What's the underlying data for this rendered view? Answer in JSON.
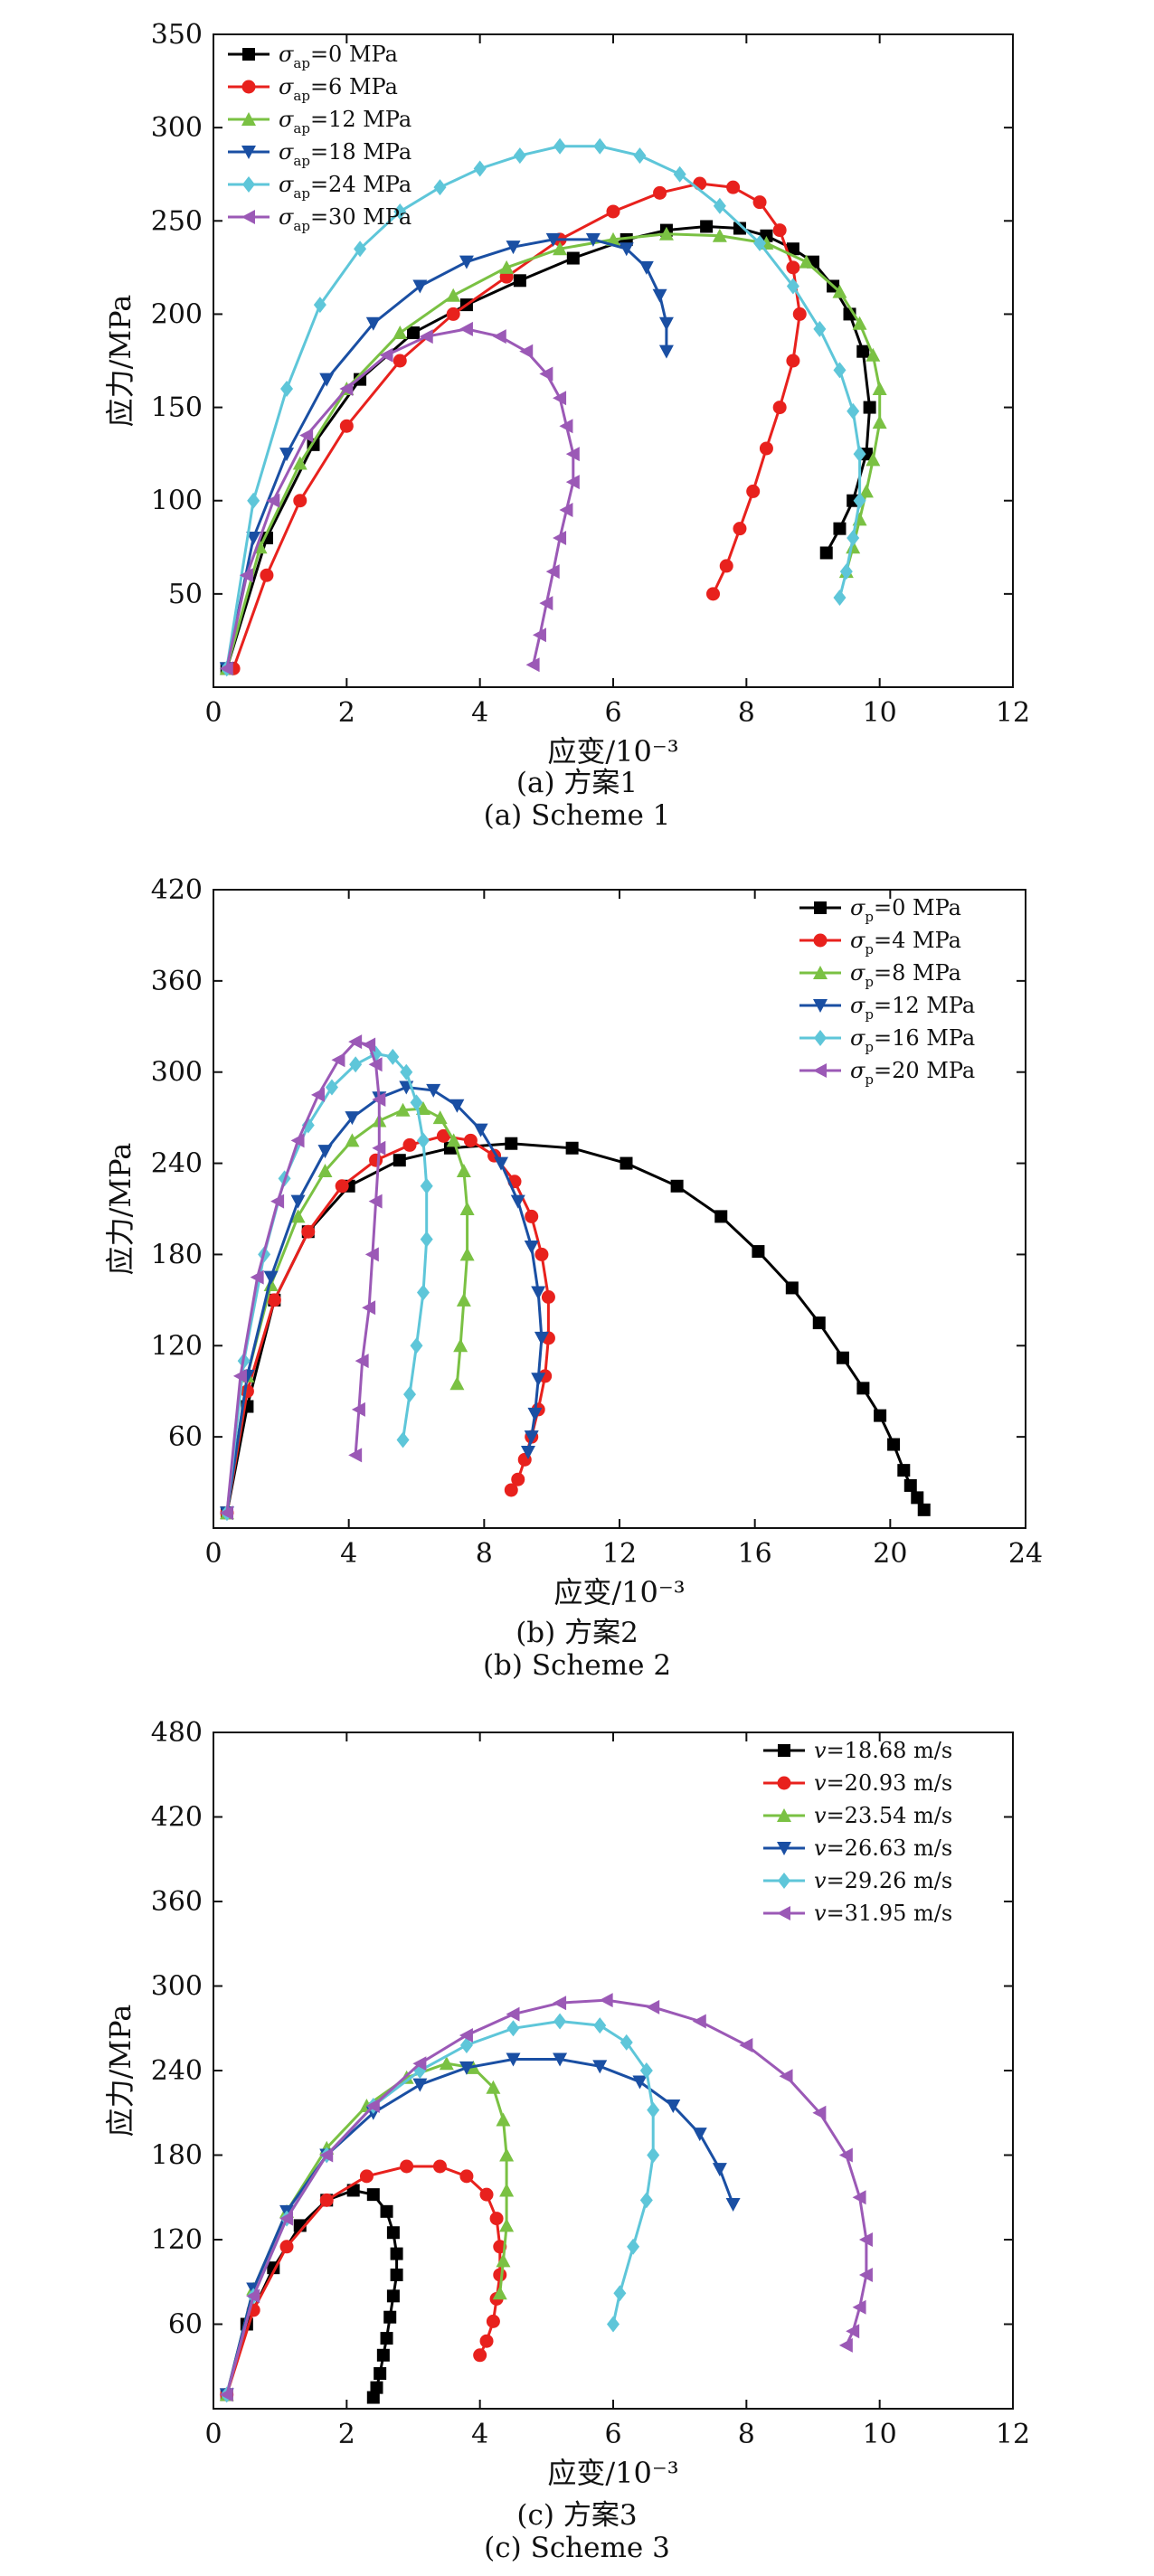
{
  "chart_data": [
    {
      "type": "line",
      "caption_cn": "(a) 方案1",
      "caption_en": "(a) Scheme 1",
      "xlabel": "应变/10⁻³",
      "ylabel": "应力/MPa",
      "xlim": [
        0,
        12
      ],
      "ylim": [
        0,
        350
      ],
      "xticks": [
        0,
        2,
        4,
        6,
        8,
        10,
        12
      ],
      "yticks": [
        50,
        100,
        150,
        200,
        250,
        300,
        350
      ],
      "legend_position": "top-left",
      "series": [
        {
          "name": "σap=0 MPa",
          "sym": "σ",
          "sub": "ap",
          "rest": "=0 MPa",
          "color": "#000000",
          "marker": "square",
          "x": [
            0.2,
            0.8,
            1.5,
            2.2,
            3,
            3.8,
            4.6,
            5.4,
            6.2,
            6.8,
            7.4,
            7.9,
            8.3,
            8.7,
            9.0,
            9.3,
            9.55,
            9.75,
            9.85,
            9.8,
            9.6,
            9.4,
            9.2
          ],
          "y": [
            10,
            80,
            130,
            165,
            190,
            205,
            218,
            230,
            240,
            245,
            247,
            246,
            242,
            235,
            228,
            215,
            200,
            180,
            150,
            125,
            100,
            85,
            72
          ]
        },
        {
          "name": "σap=6 MPa",
          "sym": "σ",
          "sub": "ap",
          "rest": "=6 MPa",
          "color": "#e8211d",
          "marker": "circle",
          "x": [
            0.3,
            0.8,
            1.3,
            2,
            2.8,
            3.6,
            4.4,
            5.2,
            6,
            6.7,
            7.3,
            7.8,
            8.2,
            8.5,
            8.7,
            8.8,
            8.7,
            8.5,
            8.3,
            8.1,
            7.9,
            7.7,
            7.5
          ],
          "y": [
            10,
            60,
            100,
            140,
            175,
            200,
            220,
            240,
            255,
            265,
            270,
            268,
            260,
            245,
            225,
            200,
            175,
            150,
            128,
            105,
            85,
            65,
            50
          ]
        },
        {
          "name": "σap=12 MPa",
          "sym": "σ",
          "sub": "ap",
          "rest": "=12 MPa",
          "color": "#7ac143",
          "marker": "triangle-up",
          "x": [
            0.2,
            0.7,
            1.3,
            2,
            2.8,
            3.6,
            4.4,
            5.2,
            6,
            6.8,
            7.6,
            8.3,
            8.9,
            9.4,
            9.7,
            9.9,
            10.0,
            10.0,
            9.9,
            9.8,
            9.7,
            9.6,
            9.5
          ],
          "y": [
            10,
            75,
            120,
            160,
            190,
            210,
            225,
            235,
            240,
            243,
            242,
            238,
            228,
            212,
            195,
            178,
            160,
            142,
            122,
            105,
            90,
            75,
            62
          ]
        },
        {
          "name": "σap=18 MPa",
          "sym": "σ",
          "sub": "ap",
          "rest": "=18 MPa",
          "color": "#1a4fa3",
          "marker": "triangle-down",
          "x": [
            0.2,
            0.6,
            1.1,
            1.7,
            2.4,
            3.1,
            3.8,
            4.5,
            5.1,
            5.7,
            6.2,
            6.5,
            6.7,
            6.8,
            6.8
          ],
          "y": [
            10,
            80,
            125,
            165,
            195,
            215,
            228,
            236,
            240,
            240,
            235,
            225,
            210,
            195,
            180
          ]
        },
        {
          "name": "σap=24 MPa",
          "sym": "σ",
          "sub": "ap",
          "rest": "=24 MPa",
          "color": "#5ec6d9",
          "marker": "diamond",
          "x": [
            0.2,
            0.6,
            1.1,
            1.6,
            2.2,
            2.8,
            3.4,
            4.0,
            4.6,
            5.2,
            5.8,
            6.4,
            7.0,
            7.6,
            8.2,
            8.7,
            9.1,
            9.4,
            9.6,
            9.7,
            9.7,
            9.6,
            9.5,
            9.4
          ],
          "y": [
            10,
            100,
            160,
            205,
            235,
            255,
            268,
            278,
            285,
            290,
            290,
            285,
            275,
            258,
            238,
            215,
            192,
            170,
            148,
            125,
            100,
            80,
            62,
            48
          ]
        },
        {
          "name": "σap=30 MPa",
          "sym": "σ",
          "sub": "ap",
          "rest": "=30 MPa",
          "color": "#9b59b6",
          "marker": "triangle-left",
          "x": [
            0.2,
            0.5,
            0.9,
            1.4,
            2.0,
            2.6,
            3.2,
            3.8,
            4.3,
            4.7,
            5.0,
            5.2,
            5.3,
            5.4,
            5.4,
            5.3,
            5.2,
            5.1,
            5.0,
            4.9,
            4.8
          ],
          "y": [
            10,
            60,
            100,
            135,
            160,
            178,
            188,
            192,
            188,
            180,
            168,
            155,
            140,
            125,
            110,
            95,
            80,
            62,
            45,
            28,
            12
          ]
        }
      ]
    },
    {
      "type": "line",
      "caption_cn": "(b) 方案2",
      "caption_en": "(b) Scheme 2",
      "xlabel": "应变/10⁻³",
      "ylabel": "应力/MPa",
      "xlim": [
        0,
        24
      ],
      "ylim": [
        0,
        420
      ],
      "xticks": [
        0,
        4,
        8,
        12,
        16,
        20,
        24
      ],
      "yticks": [
        60,
        120,
        180,
        240,
        300,
        360,
        420
      ],
      "legend_position": "top-right",
      "series": [
        {
          "name": "σp=0 MPa",
          "sym": "σ",
          "sub": "p",
          "rest": "=0 MPa",
          "color": "#000000",
          "marker": "square",
          "x": [
            0.4,
            1.0,
            1.8,
            2.8,
            4,
            5.5,
            7,
            8.8,
            10.6,
            12.2,
            13.7,
            15,
            16.1,
            17.1,
            17.9,
            18.6,
            19.2,
            19.7,
            20.1,
            20.4,
            20.6,
            20.8,
            21.0
          ],
          "y": [
            10,
            80,
            150,
            195,
            225,
            242,
            250,
            253,
            250,
            240,
            225,
            205,
            182,
            158,
            135,
            112,
            92,
            74,
            55,
            38,
            28,
            20,
            12
          ]
        },
        {
          "name": "σp=4 MPa",
          "sym": "σ",
          "sub": "p",
          "rest": "=4 MPa",
          "color": "#e8211d",
          "marker": "circle",
          "x": [
            0.4,
            1,
            1.8,
            2.8,
            3.8,
            4.8,
            5.8,
            6.8,
            7.6,
            8.3,
            8.9,
            9.4,
            9.7,
            9.9,
            9.9,
            9.8,
            9.6,
            9.4,
            9.2,
            9.0,
            8.8
          ],
          "y": [
            10,
            90,
            150,
            195,
            225,
            242,
            252,
            258,
            255,
            245,
            228,
            205,
            180,
            152,
            125,
            100,
            78,
            60,
            45,
            32,
            25
          ]
        },
        {
          "name": "σp=8 MPa",
          "sym": "σ",
          "sub": "p",
          "rest": "=8 MPa",
          "color": "#7ac143",
          "marker": "triangle-up",
          "x": [
            0.4,
            1,
            1.7,
            2.5,
            3.3,
            4.1,
            4.9,
            5.6,
            6.2,
            6.7,
            7.1,
            7.4,
            7.5,
            7.5,
            7.4,
            7.3,
            7.2
          ],
          "y": [
            10,
            100,
            160,
            205,
            235,
            255,
            268,
            275,
            276,
            270,
            255,
            235,
            210,
            180,
            150,
            120,
            95
          ]
        },
        {
          "name": "σp=12 MPa",
          "sym": "σ",
          "sub": "p",
          "rest": "=12 MPa",
          "color": "#1a4fa3",
          "marker": "triangle-down",
          "x": [
            0.4,
            1,
            1.7,
            2.5,
            3.3,
            4.1,
            4.9,
            5.7,
            6.5,
            7.2,
            7.9,
            8.5,
            9.0,
            9.4,
            9.6,
            9.7,
            9.6,
            9.5,
            9.4,
            9.3
          ],
          "y": [
            10,
            100,
            165,
            215,
            248,
            270,
            283,
            290,
            288,
            278,
            262,
            240,
            215,
            185,
            155,
            125,
            98,
            75,
            60,
            50
          ]
        },
        {
          "name": "σp=16 MPa",
          "sym": "σ",
          "sub": "p",
          "rest": "=16 MPa",
          "color": "#5ec6d9",
          "marker": "diamond",
          "x": [
            0.4,
            0.9,
            1.5,
            2.1,
            2.8,
            3.5,
            4.2,
            4.8,
            5.3,
            5.7,
            6.0,
            6.2,
            6.3,
            6.3,
            6.2,
            6.0,
            5.8,
            5.6
          ],
          "y": [
            10,
            110,
            180,
            230,
            265,
            290,
            305,
            312,
            310,
            300,
            280,
            255,
            225,
            190,
            155,
            120,
            88,
            58
          ]
        },
        {
          "name": "σp=20 MPa",
          "sym": "σ",
          "sub": "p",
          "rest": "=20 MPa",
          "color": "#9b59b6",
          "marker": "triangle-left",
          "x": [
            0.4,
            0.8,
            1.3,
            1.9,
            2.5,
            3.1,
            3.7,
            4.2,
            4.6,
            4.8,
            4.9,
            4.9,
            4.8,
            4.7,
            4.6,
            4.4,
            4.3,
            4.2
          ],
          "y": [
            10,
            100,
            165,
            215,
            255,
            285,
            308,
            320,
            318,
            305,
            282,
            250,
            215,
            180,
            145,
            110,
            78,
            48
          ]
        }
      ]
    },
    {
      "type": "line",
      "caption_cn": "(c) 方案3",
      "caption_en": "(c) Scheme 3",
      "xlabel": "应变/10⁻³",
      "ylabel": "应力/MPa",
      "xlim": [
        0,
        12
      ],
      "ylim": [
        0,
        480
      ],
      "xticks": [
        0,
        2,
        4,
        6,
        8,
        10,
        12
      ],
      "yticks": [
        60,
        120,
        180,
        240,
        300,
        360,
        420,
        480
      ],
      "legend_position": "top-right",
      "series": [
        {
          "name": "v=18.68 m/s",
          "sym": "v",
          "sub": "",
          "rest": "=18.68 m/s",
          "color": "#000000",
          "marker": "square",
          "x": [
            0.2,
            0.5,
            0.9,
            1.3,
            1.7,
            2.1,
            2.4,
            2.6,
            2.7,
            2.75,
            2.75,
            2.7,
            2.65,
            2.6,
            2.55,
            2.5,
            2.45,
            2.4
          ],
          "y": [
            10,
            60,
            100,
            130,
            148,
            155,
            152,
            140,
            125,
            110,
            95,
            80,
            65,
            50,
            38,
            25,
            15,
            8
          ]
        },
        {
          "name": "v=20.93 m/s",
          "sym": "v",
          "sub": "",
          "rest": "=20.93 m/s",
          "color": "#e8211d",
          "marker": "circle",
          "x": [
            0.2,
            0.6,
            1.1,
            1.7,
            2.3,
            2.9,
            3.4,
            3.8,
            4.1,
            4.25,
            4.3,
            4.3,
            4.25,
            4.2,
            4.1,
            4.0
          ],
          "y": [
            10,
            70,
            115,
            148,
            165,
            172,
            172,
            165,
            152,
            135,
            115,
            95,
            78,
            62,
            48,
            38
          ]
        },
        {
          "name": "v=23.54 m/s",
          "sym": "v",
          "sub": "",
          "rest": "=23.54 m/s",
          "color": "#7ac143",
          "marker": "triangle-up",
          "x": [
            0.2,
            0.6,
            1.1,
            1.7,
            2.3,
            2.9,
            3.5,
            3.9,
            4.2,
            4.35,
            4.4,
            4.4,
            4.4,
            4.35,
            4.3
          ],
          "y": [
            10,
            85,
            140,
            185,
            215,
            235,
            245,
            242,
            228,
            205,
            180,
            155,
            130,
            105,
            82
          ]
        },
        {
          "name": "v=26.63 m/s",
          "sym": "v",
          "sub": "",
          "rest": "=26.63 m/s",
          "color": "#1a4fa3",
          "marker": "triangle-down",
          "x": [
            0.2,
            0.6,
            1.1,
            1.7,
            2.4,
            3.1,
            3.8,
            4.5,
            5.2,
            5.8,
            6.4,
            6.9,
            7.3,
            7.6,
            7.8
          ],
          "y": [
            10,
            85,
            140,
            180,
            210,
            230,
            242,
            248,
            248,
            243,
            232,
            215,
            195,
            170,
            145
          ]
        },
        {
          "name": "v=29.26 m/s",
          "sym": "v",
          "sub": "",
          "rest": "=29.26 m/s",
          "color": "#5ec6d9",
          "marker": "diamond",
          "x": [
            0.2,
            0.6,
            1.1,
            1.7,
            2.4,
            3.1,
            3.8,
            4.5,
            5.2,
            5.8,
            6.2,
            6.5,
            6.6,
            6.6,
            6.5,
            6.3,
            6.1,
            6.0
          ],
          "y": [
            10,
            80,
            135,
            180,
            215,
            240,
            258,
            270,
            275,
            272,
            260,
            240,
            212,
            180,
            148,
            115,
            82,
            60
          ]
        },
        {
          "name": "v=31.95 m/s",
          "sym": "v",
          "sub": "",
          "rest": "=31.95 m/s",
          "color": "#9b59b6",
          "marker": "triangle-left",
          "x": [
            0.2,
            0.6,
            1.1,
            1.7,
            2.4,
            3.1,
            3.8,
            4.5,
            5.2,
            5.9,
            6.6,
            7.3,
            8.0,
            8.6,
            9.1,
            9.5,
            9.7,
            9.8,
            9.8,
            9.7,
            9.6,
            9.5
          ],
          "y": [
            10,
            80,
            135,
            180,
            215,
            245,
            265,
            280,
            288,
            290,
            285,
            275,
            258,
            236,
            210,
            180,
            150,
            120,
            95,
            72,
            55,
            45
          ]
        }
      ]
    }
  ]
}
